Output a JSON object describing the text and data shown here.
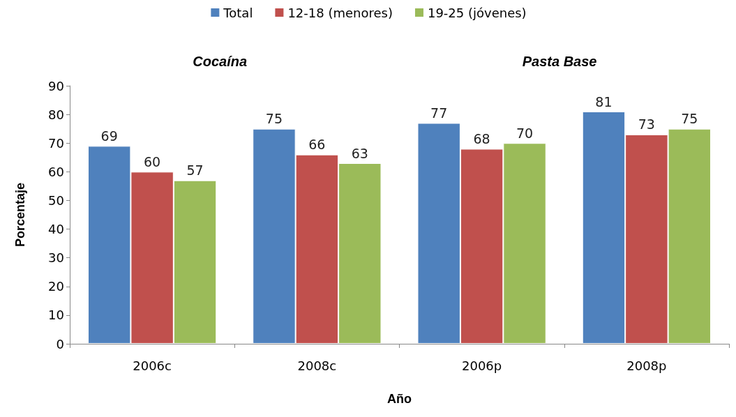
{
  "chart_data": {
    "type": "bar",
    "xlabel": "Año",
    "ylabel": "Porcentaje",
    "categories": [
      "2006c",
      "2008c",
      "2006p",
      "2008p"
    ],
    "series": [
      {
        "name": "Total",
        "color": "#4f81bd",
        "values": [
          69,
          75,
          77,
          81
        ]
      },
      {
        "name": "12-18 (menores)",
        "color": "#c0504d",
        "values": [
          60,
          66,
          68,
          73
        ]
      },
      {
        "name": "19-25 (jóvenes)",
        "color": "#9bbb59",
        "values": [
          57,
          63,
          70,
          75
        ]
      }
    ],
    "ylim": [
      0,
      90
    ],
    "yticks": [
      0,
      10,
      20,
      30,
      40,
      50,
      60,
      70,
      80,
      90
    ],
    "grid": false,
    "legend": "top",
    "data_labels": true,
    "annotations": [
      "Cocaína",
      "Pasta Base"
    ]
  }
}
